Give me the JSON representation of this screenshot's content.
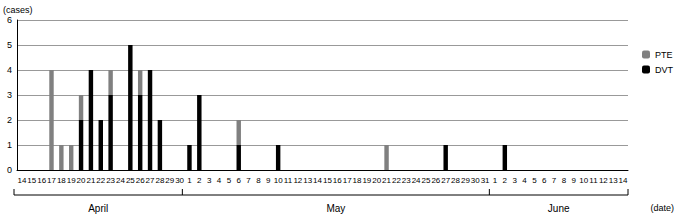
{
  "chart_data": {
    "type": "bar",
    "stacked": true,
    "grid": true,
    "legend": "upper right",
    "y_label": "(cases)",
    "x_label": "(date)",
    "month_labels": [
      "April",
      "May",
      "June"
    ],
    "categories": [
      "14",
      "15",
      "16",
      "17",
      "18",
      "19",
      "20",
      "21",
      "22",
      "23",
      "24",
      "25",
      "26",
      "27",
      "28",
      "29",
      "30",
      "1",
      "2",
      "3",
      "4",
      "5",
      "6",
      "7",
      "8",
      "9",
      "10",
      "11",
      "12",
      "13",
      "14",
      "15",
      "16",
      "17",
      "18",
      "19",
      "20",
      "21",
      "22",
      "23",
      "24",
      "25",
      "26",
      "27",
      "28",
      "29",
      "30",
      "31",
      "1",
      "2",
      "3",
      "4",
      "5",
      "6",
      "7",
      "8",
      "9",
      "10",
      "11",
      "12",
      "13",
      "14"
    ],
    "ylim": [
      0,
      6
    ],
    "yticks": [
      0,
      1,
      2,
      3,
      4,
      5,
      6
    ],
    "series": [
      {
        "name": "PTE",
        "color": "#808080",
        "values": [
          0,
          0,
          0,
          4,
          1,
          1,
          1,
          0,
          0,
          1,
          0,
          0,
          1,
          0,
          0,
          0,
          0,
          0,
          0,
          0,
          0,
          0,
          1,
          0,
          0,
          0,
          0,
          0,
          0,
          0,
          0,
          0,
          0,
          0,
          0,
          0,
          0,
          1,
          0,
          0,
          0,
          0,
          0,
          0,
          0,
          0,
          0,
          0,
          0,
          0,
          0,
          0,
          0,
          0,
          0,
          0,
          0,
          0,
          0,
          0,
          0,
          0
        ]
      },
      {
        "name": "DVT",
        "color": "#000000",
        "values": [
          0,
          0,
          0,
          0,
          0,
          0,
          2,
          4,
          2,
          3,
          0,
          5,
          3,
          4,
          2,
          0,
          0,
          1,
          3,
          0,
          0,
          0,
          1,
          0,
          0,
          0,
          1,
          0,
          0,
          0,
          0,
          0,
          0,
          0,
          0,
          0,
          0,
          0,
          0,
          0,
          0,
          0,
          0,
          1,
          0,
          0,
          0,
          0,
          0,
          1,
          0,
          0,
          0,
          0,
          0,
          0,
          0,
          0,
          0,
          0,
          0,
          0
        ]
      }
    ]
  }
}
